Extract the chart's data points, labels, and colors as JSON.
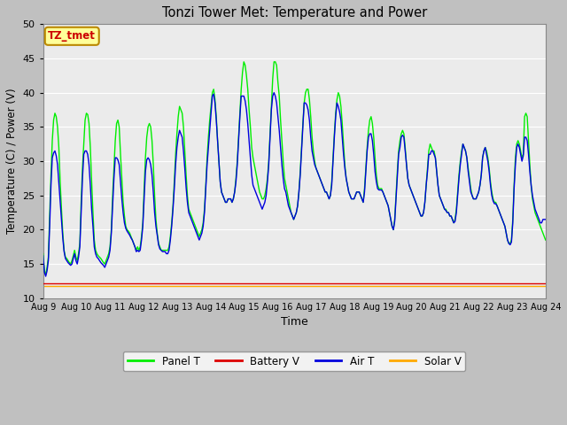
{
  "title": "Tonzi Tower Met: Temperature and Power",
  "xlabel": "Time",
  "ylabel": "Temperature (C) / Power (V)",
  "ylim": [
    10,
    50
  ],
  "yticks": [
    10,
    15,
    20,
    25,
    30,
    35,
    40,
    45,
    50
  ],
  "xtick_labels": [
    "Aug 9",
    "Aug 10",
    "Aug 11",
    "Aug 12",
    "Aug 13",
    "Aug 14",
    "Aug 15",
    "Aug 16",
    "Aug 17",
    "Aug 18",
    "Aug 19",
    "Aug 20",
    "Aug 21",
    "Aug 22",
    "Aug 23",
    "Aug 24"
  ],
  "panel_t_color": "#00ee00",
  "air_t_color": "#0000dd",
  "battery_v_color": "#dd0000",
  "solar_v_color": "#ffaa00",
  "fig_bg_color": "#c8c8c8",
  "plot_bg_color": "#ebebeb",
  "annotation_text": "TZ_tmet",
  "annotation_bg": "#ffff99",
  "annotation_border": "#bb8800",
  "annotation_text_color": "#cc0000",
  "legend_entries": [
    "Panel T",
    "Battery V",
    "Air T",
    "Solar V"
  ],
  "legend_colors": [
    "#00ee00",
    "#dd0000",
    "#0000dd",
    "#ffaa00"
  ],
  "panel_t_data": [
    16.5,
    14.0,
    13.5,
    14.5,
    16.0,
    22.0,
    28.0,
    33.0,
    36.0,
    37.0,
    36.5,
    35.0,
    32.0,
    27.0,
    23.0,
    19.5,
    17.0,
    16.0,
    15.8,
    15.5,
    15.2,
    15.0,
    15.5,
    16.2,
    17.0,
    16.0,
    15.5,
    16.5,
    18.0,
    24.0,
    29.0,
    32.5,
    36.0,
    37.0,
    36.8,
    35.5,
    32.0,
    27.0,
    22.5,
    18.5,
    17.0,
    16.5,
    16.2,
    16.0,
    15.8,
    15.5,
    15.2,
    15.0,
    15.5,
    16.0,
    16.5,
    17.5,
    20.0,
    25.0,
    29.0,
    33.0,
    35.5,
    36.0,
    35.0,
    31.0,
    27.5,
    24.0,
    22.0,
    20.5,
    20.0,
    19.8,
    19.5,
    19.0,
    18.5,
    18.0,
    17.5,
    17.0,
    17.5,
    17.0,
    17.5,
    19.0,
    21.0,
    26.0,
    30.5,
    33.5,
    35.0,
    35.5,
    35.0,
    33.0,
    29.5,
    25.0,
    21.5,
    19.5,
    18.0,
    17.5,
    17.0,
    17.0,
    17.0,
    17.0,
    17.0,
    17.0,
    17.5,
    19.0,
    21.0,
    23.5,
    27.0,
    31.0,
    34.0,
    36.5,
    38.0,
    37.5,
    37.0,
    35.0,
    31.5,
    28.0,
    25.0,
    23.0,
    22.5,
    22.0,
    21.5,
    21.0,
    20.5,
    20.0,
    19.5,
    19.0,
    19.5,
    20.0,
    21.0,
    23.0,
    26.5,
    30.5,
    33.5,
    36.0,
    38.0,
    40.0,
    40.5,
    39.0,
    36.5,
    33.0,
    30.0,
    27.0,
    25.5,
    25.0,
    24.5,
    24.0,
    24.0,
    24.5,
    24.5,
    24.5,
    24.0,
    24.5,
    25.5,
    27.5,
    30.0,
    33.5,
    37.0,
    40.5,
    43.0,
    44.5,
    44.0,
    42.5,
    40.5,
    37.5,
    35.0,
    32.0,
    30.5,
    29.5,
    28.5,
    27.5,
    26.5,
    25.5,
    25.0,
    24.5,
    24.5,
    25.0,
    26.0,
    27.5,
    30.0,
    34.0,
    38.0,
    42.0,
    44.5,
    44.5,
    44.0,
    41.5,
    39.5,
    36.0,
    33.0,
    30.0,
    27.5,
    26.5,
    25.5,
    24.5,
    23.5,
    22.5,
    22.0,
    21.5,
    22.0,
    22.5,
    23.5,
    25.5,
    28.5,
    32.0,
    35.5,
    38.5,
    40.0,
    40.5,
    40.5,
    39.0,
    36.5,
    33.5,
    31.5,
    30.0,
    29.0,
    28.5,
    28.0,
    27.5,
    27.0,
    26.5,
    26.0,
    25.5,
    25.5,
    25.0,
    24.5,
    25.0,
    27.0,
    30.5,
    34.0,
    37.0,
    39.0,
    40.0,
    39.5,
    38.0,
    35.5,
    32.5,
    29.5,
    27.5,
    26.5,
    25.5,
    25.0,
    24.5,
    24.5,
    24.5,
    25.0,
    25.5,
    25.5,
    25.5,
    25.0,
    24.5,
    24.0,
    26.0,
    29.0,
    32.0,
    34.5,
    36.0,
    36.5,
    35.5,
    33.5,
    30.5,
    28.0,
    26.5,
    26.0,
    26.0,
    26.0,
    25.5,
    25.0,
    24.5,
    24.0,
    23.5,
    22.5,
    21.5,
    20.5,
    20.0,
    21.5,
    25.0,
    28.5,
    31.5,
    33.0,
    34.0,
    34.5,
    34.0,
    32.0,
    29.5,
    27.5,
    26.5,
    26.0,
    25.5,
    25.0,
    24.5,
    24.0,
    23.5,
    23.0,
    22.5,
    22.0,
    22.0,
    22.5,
    24.0,
    26.5,
    29.0,
    31.5,
    32.5,
    32.0,
    31.5,
    31.5,
    30.5,
    28.5,
    26.5,
    25.0,
    24.5,
    24.0,
    23.5,
    23.0,
    23.0,
    22.5,
    22.5,
    22.0,
    22.0,
    21.5,
    21.0,
    21.5,
    23.0,
    25.5,
    28.0,
    30.0,
    31.5,
    32.5,
    32.0,
    31.5,
    30.5,
    29.0,
    27.5,
    26.0,
    25.0,
    24.5,
    24.5,
    24.5,
    25.0,
    25.5,
    26.5,
    28.0,
    30.5,
    31.5,
    32.0,
    31.5,
    30.5,
    29.0,
    27.0,
    25.5,
    24.5,
    24.0,
    24.0,
    23.5,
    23.0,
    22.5,
    22.0,
    21.5,
    21.0,
    20.5,
    19.5,
    18.5,
    18.0,
    18.0,
    18.5,
    21.5,
    26.5,
    30.5,
    32.5,
    33.0,
    32.5,
    31.5,
    30.5,
    31.0,
    36.5,
    37.0,
    36.5,
    33.0,
    29.5,
    26.5,
    24.5,
    23.5,
    22.5,
    22.0,
    21.5,
    21.0,
    20.5,
    20.0,
    19.5,
    19.0,
    18.5
  ],
  "air_t_data": [
    16.2,
    13.8,
    13.2,
    14.0,
    15.5,
    20.5,
    26.5,
    30.5,
    31.2,
    31.5,
    30.8,
    29.5,
    26.8,
    24.0,
    21.5,
    18.8,
    16.8,
    15.8,
    15.5,
    15.2,
    15.0,
    14.8,
    15.0,
    15.8,
    16.5,
    15.5,
    15.0,
    16.0,
    17.5,
    22.5,
    27.5,
    31.0,
    31.5,
    31.5,
    31.0,
    29.5,
    26.5,
    23.0,
    20.5,
    17.5,
    16.5,
    16.0,
    15.8,
    15.5,
    15.2,
    15.0,
    14.8,
    14.5,
    15.0,
    15.5,
    16.0,
    17.0,
    19.5,
    23.5,
    27.5,
    30.5,
    30.5,
    30.2,
    29.5,
    27.0,
    24.5,
    22.5,
    21.0,
    20.2,
    19.8,
    19.5,
    19.2,
    18.8,
    18.5,
    18.0,
    17.5,
    16.8,
    17.0,
    16.8,
    17.0,
    18.5,
    20.5,
    24.5,
    28.5,
    30.2,
    30.5,
    30.2,
    29.5,
    28.0,
    25.5,
    22.5,
    20.5,
    19.2,
    17.8,
    17.2,
    17.0,
    16.8,
    16.8,
    16.8,
    16.5,
    16.5,
    17.0,
    18.5,
    20.5,
    23.0,
    26.0,
    29.5,
    32.0,
    33.5,
    34.5,
    34.0,
    33.5,
    31.5,
    29.0,
    26.2,
    24.0,
    22.5,
    22.0,
    21.5,
    21.0,
    20.5,
    20.0,
    19.5,
    19.0,
    18.5,
    19.0,
    19.5,
    20.5,
    22.5,
    26.0,
    29.5,
    32.0,
    34.5,
    37.0,
    39.5,
    39.8,
    38.5,
    36.0,
    33.0,
    30.0,
    27.0,
    25.5,
    25.0,
    24.5,
    24.0,
    24.0,
    24.5,
    24.5,
    24.5,
    24.0,
    24.5,
    25.5,
    27.0,
    29.5,
    33.0,
    36.5,
    39.5,
    39.5,
    39.5,
    38.8,
    37.5,
    35.5,
    33.0,
    30.5,
    28.0,
    26.5,
    26.0,
    25.5,
    25.0,
    24.5,
    24.0,
    23.5,
    23.0,
    23.5,
    24.0,
    25.0,
    27.0,
    29.5,
    33.5,
    37.5,
    39.5,
    40.0,
    39.5,
    38.5,
    36.5,
    34.5,
    32.0,
    29.5,
    27.5,
    26.0,
    25.5,
    24.5,
    23.5,
    23.0,
    22.5,
    22.0,
    21.5,
    22.0,
    22.5,
    23.5,
    25.5,
    28.0,
    31.5,
    35.0,
    38.5,
    38.5,
    38.2,
    37.5,
    36.0,
    33.5,
    31.5,
    30.5,
    29.5,
    29.0,
    28.5,
    28.0,
    27.5,
    27.0,
    26.5,
    26.0,
    25.5,
    25.5,
    25.0,
    24.5,
    25.0,
    26.5,
    30.0,
    33.5,
    36.5,
    38.5,
    38.0,
    37.2,
    36.0,
    33.5,
    31.0,
    29.0,
    27.5,
    26.5,
    25.5,
    25.0,
    24.5,
    24.5,
    24.5,
    25.0,
    25.5,
    25.5,
    25.5,
    25.0,
    24.5,
    24.0,
    25.5,
    28.5,
    31.5,
    33.5,
    34.0,
    34.0,
    33.0,
    31.0,
    28.5,
    27.0,
    26.0,
    25.8,
    25.8,
    25.8,
    25.5,
    25.0,
    24.5,
    24.0,
    23.5,
    22.5,
    21.5,
    20.5,
    20.0,
    21.2,
    24.5,
    28.0,
    31.0,
    32.0,
    33.5,
    33.8,
    33.5,
    31.5,
    29.5,
    27.5,
    26.5,
    26.0,
    25.5,
    25.0,
    24.5,
    24.0,
    23.5,
    23.0,
    22.5,
    22.0,
    22.0,
    22.5,
    24.0,
    26.5,
    28.5,
    31.0,
    31.0,
    31.5,
    31.5,
    31.0,
    30.5,
    28.5,
    26.5,
    25.0,
    24.5,
    24.0,
    23.5,
    23.0,
    22.8,
    22.5,
    22.5,
    22.0,
    22.0,
    21.5,
    21.0,
    21.2,
    22.5,
    25.0,
    27.5,
    29.5,
    31.0,
    32.5,
    32.0,
    31.5,
    30.5,
    28.5,
    27.0,
    25.5,
    25.0,
    24.5,
    24.5,
    24.5,
    25.0,
    25.5,
    26.5,
    28.0,
    30.5,
    31.5,
    32.0,
    31.0,
    30.0,
    28.5,
    26.5,
    25.0,
    24.2,
    23.8,
    23.8,
    23.5,
    23.0,
    22.5,
    22.0,
    21.5,
    21.0,
    20.5,
    19.5,
    18.5,
    18.0,
    17.8,
    18.2,
    21.0,
    26.0,
    29.5,
    32.0,
    32.5,
    32.0,
    31.0,
    30.0,
    30.8,
    33.5,
    33.5,
    33.0,
    31.0,
    28.5,
    26.5,
    25.0,
    24.0,
    23.0,
    22.5,
    22.0,
    21.5,
    21.0,
    21.0,
    21.5,
    21.5,
    21.5
  ],
  "battery_v": 12.2,
  "solar_v": 11.85
}
